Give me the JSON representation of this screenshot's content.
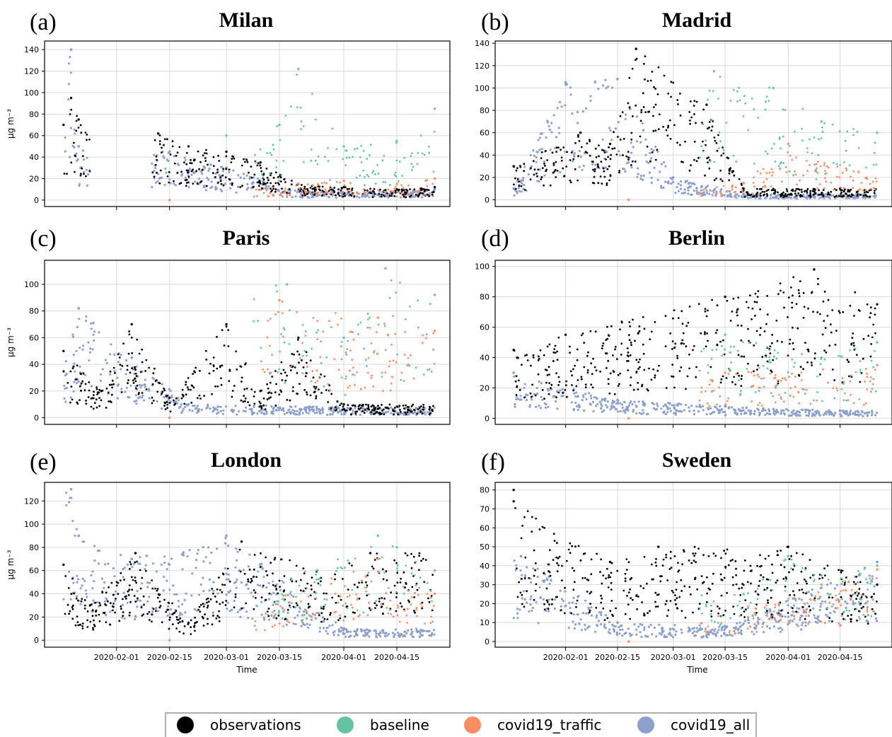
{
  "legend": {
    "items": [
      {
        "label": "observations",
        "color": "#000000"
      },
      {
        "label": "baseline",
        "color": "#66c2a5"
      },
      {
        "label": "covid19_traffic",
        "color": "#fc8d62"
      },
      {
        "label": "covid19_all",
        "color": "#8da0cb"
      }
    ]
  },
  "chart_data": [
    {
      "type": "scatter",
      "panel_letter": "(a)",
      "title": "Milan",
      "ylabel": "μg m⁻³",
      "xlabel": "",
      "yticks": [
        0,
        20,
        40,
        60,
        80,
        100,
        120,
        140
      ],
      "ylim": [
        -6,
        148
      ],
      "xlim": [
        "2020-01-13",
        "2020-04-29"
      ],
      "xticks": [
        "2020-02-01",
        "2020-02-15",
        "2020-03-01",
        "2020-03-15",
        "2020-04-01",
        "2020-04-15"
      ],
      "show_xtick_labels": false,
      "gap": [
        "2020-01-25",
        "2020-02-10"
      ],
      "series": [
        {
          "name": "observations",
          "values": [
            {
              "x": "2020-01-18",
              "y": 70
            },
            {
              "x": "2020-01-20",
              "y": 95
            },
            {
              "x": "2020-01-22",
              "y": 75
            },
            {
              "x": "2020-02-12",
              "y": 62
            },
            {
              "x": "2020-02-20",
              "y": 50
            },
            {
              "x": "2020-03-01",
              "y": 45
            },
            {
              "x": "2020-03-10",
              "y": 35
            },
            {
              "x": "2020-03-20",
              "y": 15
            },
            {
              "x": "2020-04-01",
              "y": 12
            },
            {
              "x": "2020-04-15",
              "y": 10
            },
            {
              "x": "2020-04-25",
              "y": 12
            }
          ]
        },
        {
          "name": "baseline",
          "values": [
            {
              "x": "2020-03-01",
              "y": 60
            },
            {
              "x": "2020-03-15",
              "y": 70
            },
            {
              "x": "2020-03-20",
              "y": 122
            },
            {
              "x": "2020-04-01",
              "y": 50
            },
            {
              "x": "2020-04-15",
              "y": 55
            },
            {
              "x": "2020-04-25",
              "y": 85
            }
          ]
        },
        {
          "name": "covid19_traffic",
          "values": [
            {
              "x": "2020-02-15",
              "y": 0
            },
            {
              "x": "2020-03-20",
              "y": 15
            },
            {
              "x": "2020-04-01",
              "y": 18
            },
            {
              "x": "2020-04-15",
              "y": 15
            },
            {
              "x": "2020-04-25",
              "y": 20
            }
          ]
        },
        {
          "name": "covid19_all",
          "values": [
            {
              "x": "2020-01-20",
              "y": 140
            },
            {
              "x": "2020-01-22",
              "y": 50
            },
            {
              "x": "2020-02-15",
              "y": 45
            },
            {
              "x": "2020-03-01",
              "y": 30
            },
            {
              "x": "2020-03-20",
              "y": 8
            },
            {
              "x": "2020-04-15",
              "y": 8
            },
            {
              "x": "2020-04-25",
              "y": 10
            }
          ]
        }
      ]
    },
    {
      "type": "scatter",
      "panel_letter": "(b)",
      "title": "Madrid",
      "ylabel": "",
      "xlabel": "",
      "yticks": [
        0,
        20,
        40,
        60,
        80,
        100,
        120,
        140
      ],
      "ylim": [
        -6,
        142
      ],
      "xlim": [
        "2020-01-13",
        "2020-04-29"
      ],
      "xticks": [
        "2020-02-01",
        "2020-02-15",
        "2020-03-01",
        "2020-03-15",
        "2020-04-01",
        "2020-04-15"
      ],
      "show_xtick_labels": false,
      "series": [
        {
          "name": "observations",
          "values": [
            {
              "x": "2020-01-18",
              "y": 30
            },
            {
              "x": "2020-02-05",
              "y": 60
            },
            {
              "x": "2020-02-13",
              "y": 50
            },
            {
              "x": "2020-02-20",
              "y": 135
            },
            {
              "x": "2020-03-10",
              "y": 85
            },
            {
              "x": "2020-03-20",
              "y": 10
            },
            {
              "x": "2020-04-15",
              "y": 10
            }
          ]
        },
        {
          "name": "baseline",
          "values": [
            {
              "x": "2020-03-12",
              "y": 115
            },
            {
              "x": "2020-03-28",
              "y": 100
            },
            {
              "x": "2020-04-10",
              "y": 70
            },
            {
              "x": "2020-04-25",
              "y": 60
            }
          ]
        },
        {
          "name": "covid19_traffic",
          "values": [
            {
              "x": "2020-02-18",
              "y": 0
            },
            {
              "x": "2020-03-20",
              "y": 15
            },
            {
              "x": "2020-04-01",
              "y": 50
            },
            {
              "x": "2020-04-20",
              "y": 25
            }
          ]
        },
        {
          "name": "covid19_all",
          "values": [
            {
              "x": "2020-01-18",
              "y": 10
            },
            {
              "x": "2020-02-01",
              "y": 105
            },
            {
              "x": "2020-02-15",
              "y": 108
            },
            {
              "x": "2020-03-01",
              "y": 20
            },
            {
              "x": "2020-03-20",
              "y": 5
            },
            {
              "x": "2020-04-20",
              "y": 5
            }
          ]
        }
      ]
    },
    {
      "type": "scatter",
      "panel_letter": "(c)",
      "title": "Paris",
      "ylabel": "μg m⁻³",
      "xlabel": "",
      "yticks": [
        0,
        20,
        40,
        60,
        80,
        100
      ],
      "ylim": [
        -5,
        118
      ],
      "xlim": [
        "2020-01-13",
        "2020-04-29"
      ],
      "xticks": [
        "2020-02-01",
        "2020-02-15",
        "2020-03-01",
        "2020-03-15",
        "2020-04-01",
        "2020-04-15"
      ],
      "show_xtick_labels": false,
      "series": [
        {
          "name": "observations",
          "values": [
            {
              "x": "2020-01-18",
              "y": 50
            },
            {
              "x": "2020-01-28",
              "y": 20
            },
            {
              "x": "2020-02-05",
              "y": 70
            },
            {
              "x": "2020-02-15",
              "y": 15
            },
            {
              "x": "2020-03-01",
              "y": 70
            },
            {
              "x": "2020-03-10",
              "y": 20
            },
            {
              "x": "2020-03-20",
              "y": 60
            },
            {
              "x": "2020-04-01",
              "y": 10
            }
          ]
        },
        {
          "name": "baseline",
          "values": [
            {
              "x": "2020-03-17",
              "y": 100
            },
            {
              "x": "2020-04-01",
              "y": 60
            },
            {
              "x": "2020-04-12",
              "y": 112
            },
            {
              "x": "2020-04-25",
              "y": 92
            }
          ]
        },
        {
          "name": "covid19_traffic",
          "values": [
            {
              "x": "2020-02-15",
              "y": 0
            },
            {
              "x": "2020-03-15",
              "y": 88
            },
            {
              "x": "2020-04-10",
              "y": 75
            },
            {
              "x": "2020-04-25",
              "y": 65
            }
          ]
        },
        {
          "name": "covid19_all",
          "values": [
            {
              "x": "2020-01-18",
              "y": 35
            },
            {
              "x": "2020-01-22",
              "y": 82
            },
            {
              "x": "2020-02-05",
              "y": 45
            },
            {
              "x": "2020-02-20",
              "y": 10
            },
            {
              "x": "2020-04-10",
              "y": 8
            }
          ]
        }
      ]
    },
    {
      "type": "scatter",
      "panel_letter": "(d)",
      "title": "Berlin",
      "ylabel": "",
      "xlabel": "",
      "yticks": [
        0,
        20,
        40,
        60,
        80,
        100
      ],
      "ylim": [
        -4,
        104
      ],
      "xlim": [
        "2020-01-13",
        "2020-04-29"
      ],
      "xticks": [
        "2020-02-01",
        "2020-02-15",
        "2020-03-01",
        "2020-03-15",
        "2020-04-01",
        "2020-04-15"
      ],
      "show_xtick_labels": false,
      "series": [
        {
          "name": "observations",
          "values": [
            {
              "x": "2020-01-18",
              "y": 45
            },
            {
              "x": "2020-02-01",
              "y": 55
            },
            {
              "x": "2020-03-15",
              "y": 80
            },
            {
              "x": "2020-04-08",
              "y": 98
            },
            {
              "x": "2020-04-25",
              "y": 75
            }
          ]
        },
        {
          "name": "baseline",
          "values": [
            {
              "x": "2020-03-15",
              "y": 55
            },
            {
              "x": "2020-04-10",
              "y": 40
            },
            {
              "x": "2020-04-25",
              "y": 50
            }
          ]
        },
        {
          "name": "covid19_traffic",
          "values": [
            {
              "x": "2020-02-18",
              "y": 0
            },
            {
              "x": "2020-03-15",
              "y": 30
            },
            {
              "x": "2020-04-25",
              "y": 35
            }
          ]
        },
        {
          "name": "covid19_all",
          "values": [
            {
              "x": "2020-01-18",
              "y": 30
            },
            {
              "x": "2020-02-15",
              "y": 12
            },
            {
              "x": "2020-03-15",
              "y": 8
            },
            {
              "x": "2020-04-15",
              "y": 5
            }
          ]
        }
      ]
    },
    {
      "type": "scatter",
      "panel_letter": "(e)",
      "title": "London",
      "ylabel": "μg m⁻³",
      "xlabel": "Time",
      "yticks": [
        0,
        20,
        40,
        60,
        80,
        100,
        120
      ],
      "ylim": [
        -6,
        136
      ],
      "xlim": [
        "2020-01-13",
        "2020-04-29"
      ],
      "xticks": [
        "2020-02-01",
        "2020-02-15",
        "2020-03-01",
        "2020-03-15",
        "2020-04-01",
        "2020-04-15"
      ],
      "show_xtick_labels": true,
      "series": [
        {
          "name": "observations",
          "values": [
            {
              "x": "2020-01-18",
              "y": 65
            },
            {
              "x": "2020-01-25",
              "y": 30
            },
            {
              "x": "2020-02-06",
              "y": 75
            },
            {
              "x": "2020-02-20",
              "y": 15
            },
            {
              "x": "2020-03-05",
              "y": 85
            },
            {
              "x": "2020-03-25",
              "y": 60
            },
            {
              "x": "2020-04-08",
              "y": 75
            }
          ]
        },
        {
          "name": "baseline",
          "values": [
            {
              "x": "2020-03-25",
              "y": 60
            },
            {
              "x": "2020-04-10",
              "y": 90
            },
            {
              "x": "2020-04-15",
              "y": 80
            },
            {
              "x": "2020-04-25",
              "y": 60
            }
          ]
        },
        {
          "name": "covid19_traffic",
          "values": [
            {
              "x": "2020-02-15",
              "y": 0
            },
            {
              "x": "2020-04-10",
              "y": 70
            },
            {
              "x": "2020-04-25",
              "y": 40
            }
          ]
        },
        {
          "name": "covid19_all",
          "values": [
            {
              "x": "2020-01-20",
              "y": 130
            },
            {
              "x": "2020-01-22",
              "y": 90
            },
            {
              "x": "2020-02-05",
              "y": 70
            },
            {
              "x": "2020-03-01",
              "y": 90
            },
            {
              "x": "2020-04-01",
              "y": 10
            }
          ]
        }
      ]
    },
    {
      "type": "scatter",
      "panel_letter": "(f)",
      "title": "Sweden",
      "ylabel": "",
      "xlabel": "Time",
      "yticks": [
        0,
        10,
        20,
        30,
        40,
        50,
        60,
        70,
        80
      ],
      "ylim": [
        -3,
        84
      ],
      "xlim": [
        "2020-01-13",
        "2020-04-29"
      ],
      "xticks": [
        "2020-02-01",
        "2020-02-15",
        "2020-03-01",
        "2020-03-15",
        "2020-04-01",
        "2020-04-15"
      ],
      "show_xtick_labels": true,
      "series": [
        {
          "name": "observations",
          "values": [
            {
              "x": "2020-01-18",
              "y": 80
            },
            {
              "x": "2020-01-18",
              "y": 74
            },
            {
              "x": "2020-02-13",
              "y": 42
            },
            {
              "x": "2020-02-26",
              "y": 50
            },
            {
              "x": "2020-04-01",
              "y": 50
            },
            {
              "x": "2020-04-25",
              "y": 30
            }
          ]
        },
        {
          "name": "baseline",
          "values": [
            {
              "x": "2020-03-20",
              "y": 25
            },
            {
              "x": "2020-04-01",
              "y": 45
            },
            {
              "x": "2020-04-10",
              "y": 35
            },
            {
              "x": "2020-04-25",
              "y": 40
            }
          ]
        },
        {
          "name": "covid19_traffic",
          "values": [
            {
              "x": "2020-02-18",
              "y": 0
            },
            {
              "x": "2020-04-10",
              "y": 30
            },
            {
              "x": "2020-04-25",
              "y": 38
            }
          ]
        },
        {
          "name": "covid19_all",
          "values": [
            {
              "x": "2020-01-20",
              "y": 45
            },
            {
              "x": "2020-02-15",
              "y": 10
            },
            {
              "x": "2020-03-15",
              "y": 8
            },
            {
              "x": "2020-04-25",
              "y": 42
            }
          ]
        }
      ]
    }
  ]
}
